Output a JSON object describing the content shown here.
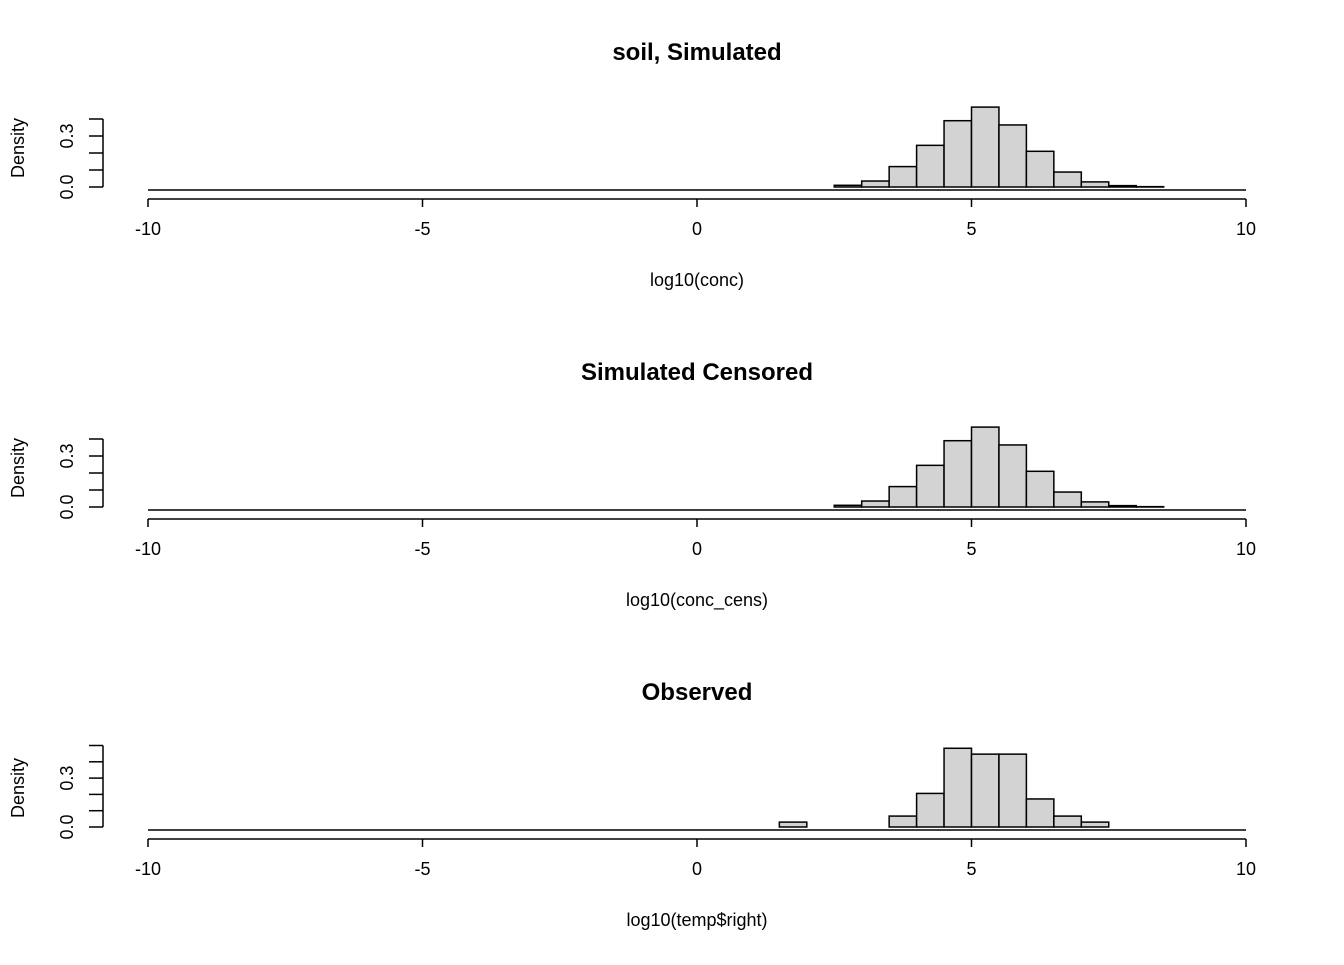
{
  "chart_data": [
    {
      "type": "bar",
      "subtype": "histogram",
      "title": "soil, Simulated",
      "xlabel": "log10(conc)",
      "ylabel": "Density",
      "xlim": [
        -10,
        10
      ],
      "ylim": [
        0,
        0.47
      ],
      "x_ticks": [
        "-10",
        "-5",
        "0",
        "5",
        "10"
      ],
      "y_ticks": [
        "0.0",
        "0.3"
      ],
      "y_tick_values": [
        0,
        0.1,
        0.2,
        0.3,
        0.4
      ],
      "bin_width": 0.5,
      "bin_start": -10,
      "bin_end": 10,
      "bins": [
        {
          "from": 2.5,
          "to": 3.0,
          "density": 0.01
        },
        {
          "from": 3.0,
          "to": 3.5,
          "density": 0.035
        },
        {
          "from": 3.5,
          "to": 4.0,
          "density": 0.12
        },
        {
          "from": 4.0,
          "to": 4.5,
          "density": 0.245
        },
        {
          "from": 4.5,
          "to": 5.0,
          "density": 0.39
        },
        {
          "from": 5.0,
          "to": 5.5,
          "density": 0.47
        },
        {
          "from": 5.5,
          "to": 6.0,
          "density": 0.365
        },
        {
          "from": 6.0,
          "to": 6.5,
          "density": 0.21
        },
        {
          "from": 6.5,
          "to": 7.0,
          "density": 0.088
        },
        {
          "from": 7.0,
          "to": 7.5,
          "density": 0.03
        },
        {
          "from": 7.5,
          "to": 8.0,
          "density": 0.008
        },
        {
          "from": 8.0,
          "to": 8.5,
          "density": 0.002
        }
      ]
    },
    {
      "type": "bar",
      "subtype": "histogram",
      "title": "Simulated Censored",
      "xlabel": "log10(conc_cens)",
      "ylabel": "Density",
      "xlim": [
        -10,
        10
      ],
      "ylim": [
        0,
        0.47
      ],
      "x_ticks": [
        "-10",
        "-5",
        "0",
        "5",
        "10"
      ],
      "y_ticks": [
        "0.0",
        "0.3"
      ],
      "y_tick_values": [
        0,
        0.1,
        0.2,
        0.3,
        0.4
      ],
      "bin_width": 0.5,
      "bin_start": -10,
      "bin_end": 10,
      "bins": [
        {
          "from": 2.5,
          "to": 3.0,
          "density": 0.01
        },
        {
          "from": 3.0,
          "to": 3.5,
          "density": 0.035
        },
        {
          "from": 3.5,
          "to": 4.0,
          "density": 0.12
        },
        {
          "from": 4.0,
          "to": 4.5,
          "density": 0.245
        },
        {
          "from": 4.5,
          "to": 5.0,
          "density": 0.39
        },
        {
          "from": 5.0,
          "to": 5.5,
          "density": 0.47
        },
        {
          "from": 5.5,
          "to": 6.0,
          "density": 0.365
        },
        {
          "from": 6.0,
          "to": 6.5,
          "density": 0.21
        },
        {
          "from": 6.5,
          "to": 7.0,
          "density": 0.088
        },
        {
          "from": 7.0,
          "to": 7.5,
          "density": 0.03
        },
        {
          "from": 7.5,
          "to": 8.0,
          "density": 0.008
        },
        {
          "from": 8.0,
          "to": 8.5,
          "density": 0.002
        }
      ]
    },
    {
      "type": "bar",
      "subtype": "histogram",
      "title": "Observed",
      "xlabel": "log10(temp$right)",
      "ylabel": "Density",
      "xlim": [
        -10,
        10
      ],
      "ylim": [
        0,
        0.5
      ],
      "x_ticks": [
        "-10",
        "-5",
        "0",
        "5",
        "10"
      ],
      "y_ticks": [
        "0.0",
        "0.3"
      ],
      "y_tick_values": [
        0,
        0.1,
        0.2,
        0.3,
        0.4,
        0.5
      ],
      "bin_width": 0.5,
      "bin_start": -10,
      "bin_end": 10,
      "bins": [
        {
          "from": 1.5,
          "to": 2.0,
          "density": 0.03
        },
        {
          "from": 3.5,
          "to": 4.0,
          "density": 0.067
        },
        {
          "from": 4.0,
          "to": 4.5,
          "density": 0.206
        },
        {
          "from": 4.5,
          "to": 5.0,
          "density": 0.483
        },
        {
          "from": 5.0,
          "to": 5.5,
          "density": 0.447
        },
        {
          "from": 5.5,
          "to": 6.0,
          "density": 0.447
        },
        {
          "from": 6.0,
          "to": 6.5,
          "density": 0.172
        },
        {
          "from": 6.5,
          "to": 7.0,
          "density": 0.067
        },
        {
          "from": 7.0,
          "to": 7.5,
          "density": 0.03
        }
      ]
    }
  ],
  "colors": {
    "bar_fill": "#d3d3d3",
    "stroke": "#000000"
  }
}
